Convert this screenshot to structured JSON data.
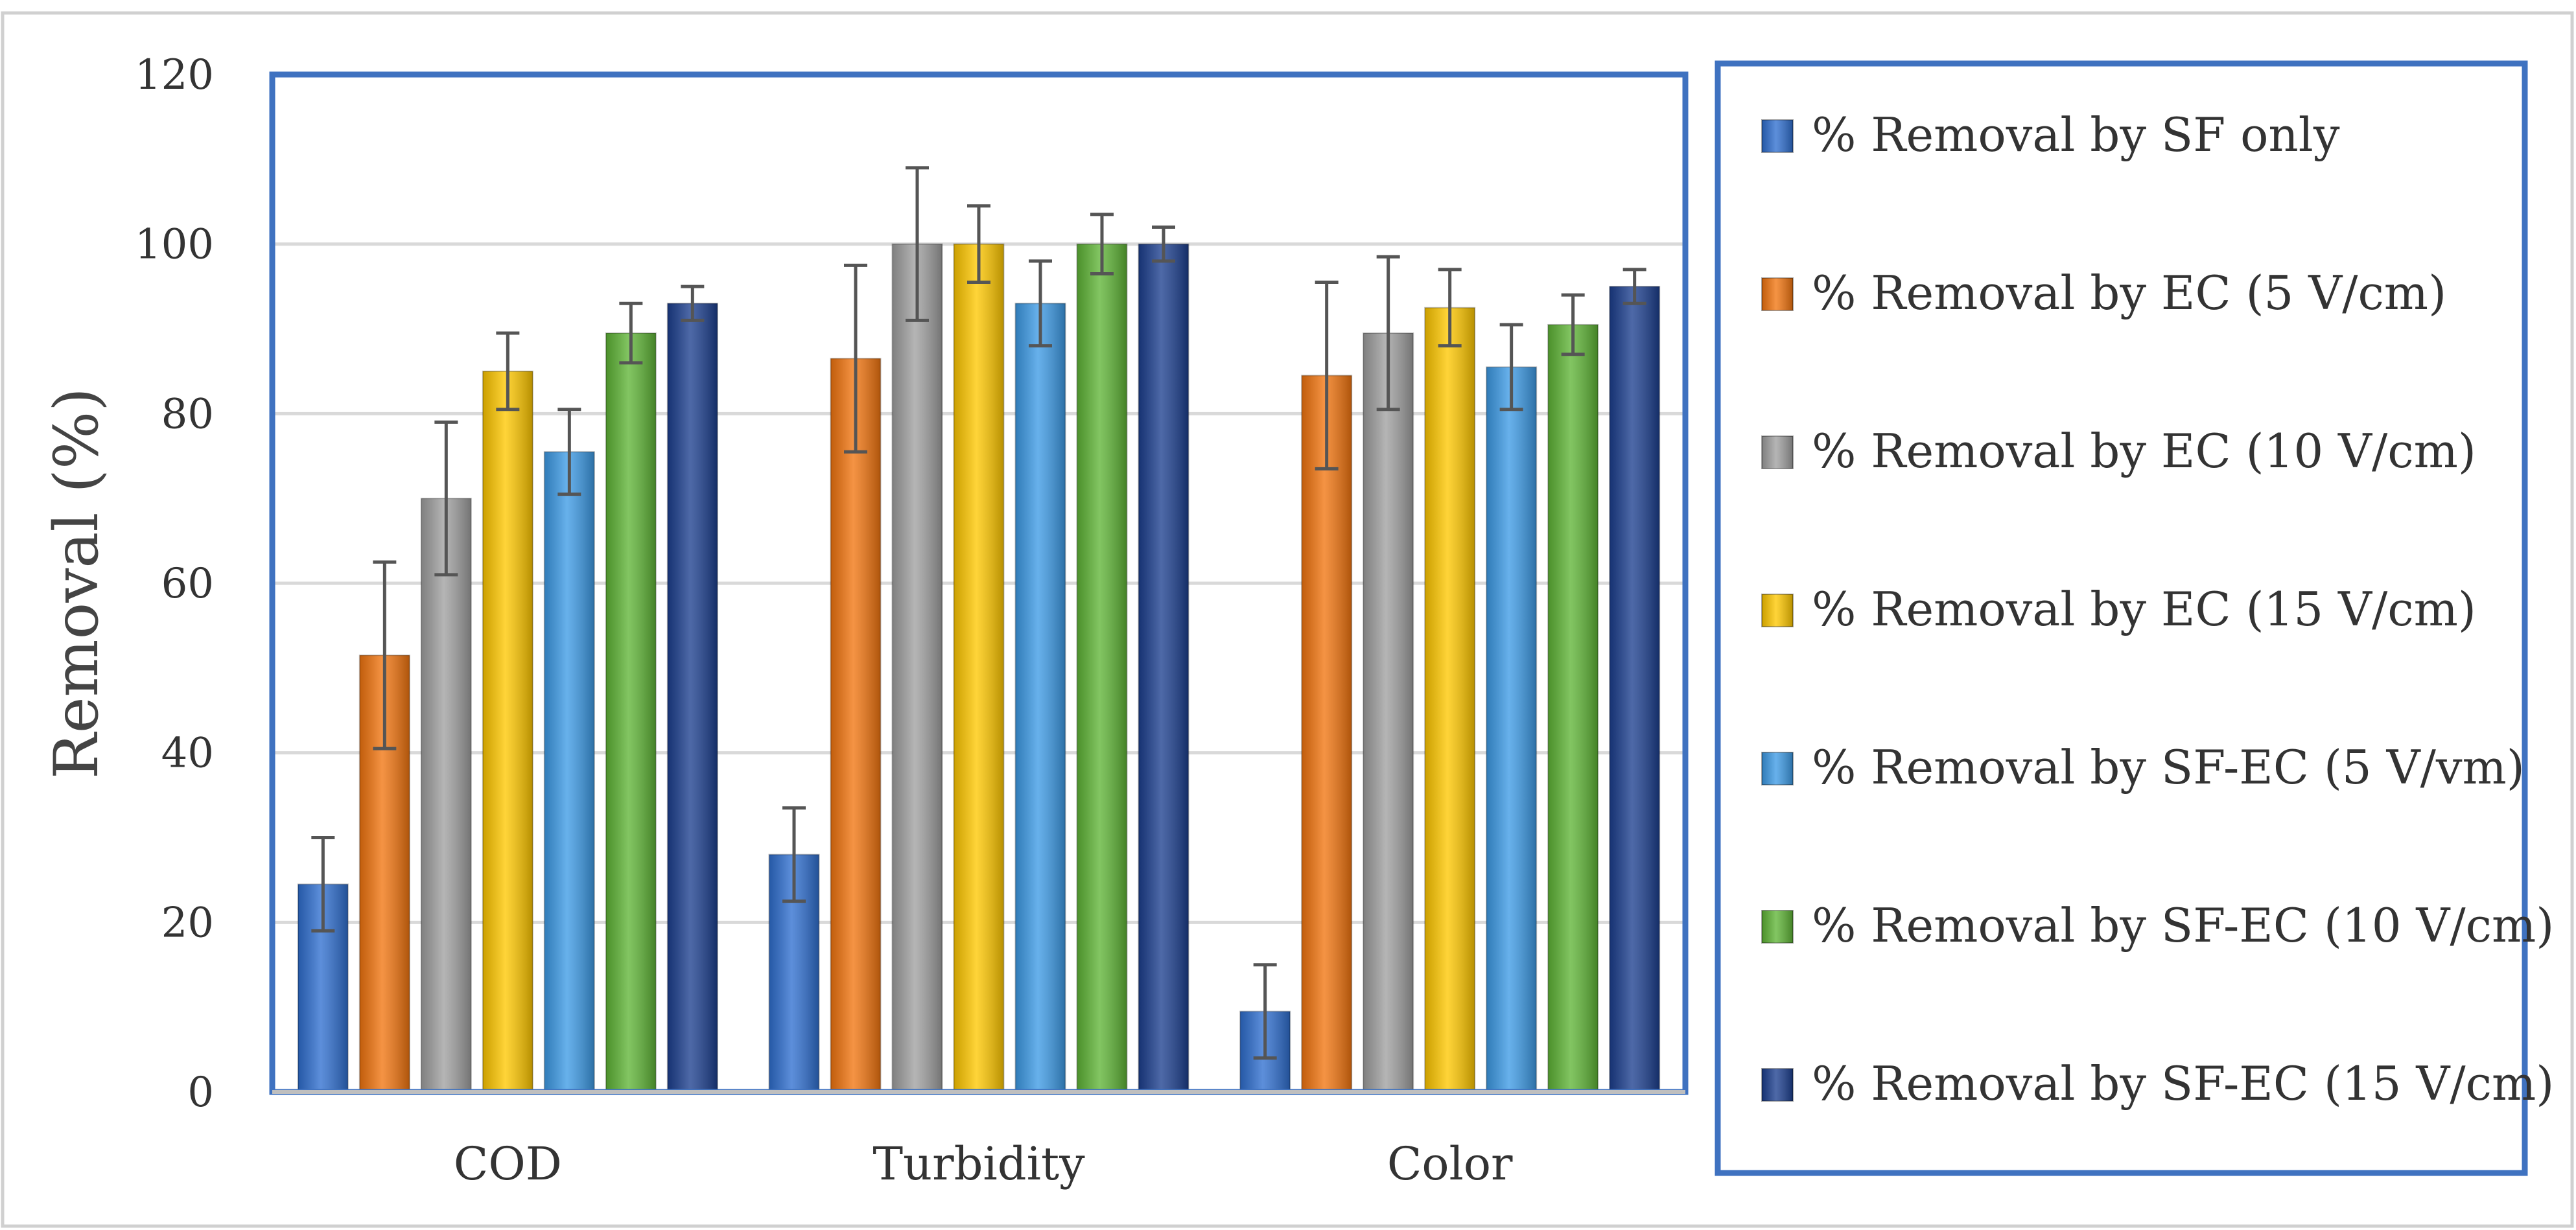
{
  "chart_data": {
    "type": "bar",
    "ylabel": "Removal (%)",
    "ylim": [
      0,
      120
    ],
    "ytick_step": 20,
    "yticks": [
      "0",
      "20",
      "40",
      "60",
      "80",
      "100",
      "120"
    ],
    "gridlines": true,
    "legend_position": "right",
    "categories": [
      "COD",
      "Turbidity",
      "Color"
    ],
    "series": [
      {
        "name": "% Removal by SF only",
        "color": "#2F6FD0",
        "values": [
          24.5,
          28,
          9.5
        ],
        "errors": [
          5.5,
          5.5,
          5.5
        ]
      },
      {
        "name": "% Removal by EC (5 V/cm)",
        "color": "#F2750F",
        "values": [
          51.5,
          86.5,
          84.5
        ],
        "errors": [
          11,
          11,
          11
        ]
      },
      {
        "name": "% Removal by EC (10 V/cm)",
        "color": "#A0A0A0",
        "values": [
          70,
          100,
          89.5
        ],
        "errors": [
          9,
          9,
          9
        ]
      },
      {
        "name": "% Removal by EC (15 V/cm)",
        "color": "#FFC800",
        "values": [
          85,
          100,
          92.5
        ],
        "errors": [
          4.5,
          4.5,
          4.5
        ]
      },
      {
        "name": "% Removal by SF-EC (5 V/vm)",
        "color": "#3D9BE6",
        "values": [
          75.5,
          93,
          85.5
        ],
        "errors": [
          5,
          5,
          5
        ]
      },
      {
        "name": "% Removal by SF-EC (10 V/cm)",
        "color": "#5FB536",
        "values": [
          89.5,
          100,
          90.5
        ],
        "errors": [
          3.5,
          3.5,
          3.5
        ]
      },
      {
        "name": "% Removal by SF-EC (15 V/cm)",
        "color": "#1C3F8F",
        "values": [
          93,
          100,
          95
        ],
        "errors": [
          2,
          2,
          2
        ]
      }
    ]
  }
}
